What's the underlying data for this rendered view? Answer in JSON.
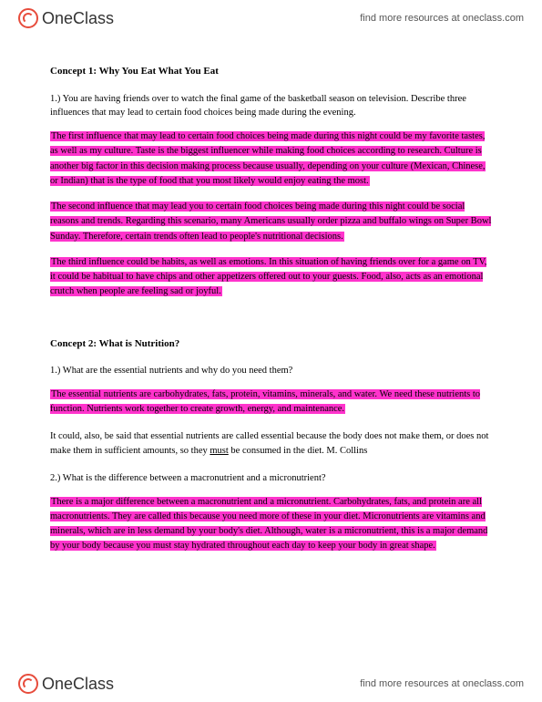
{
  "brand": {
    "name_part1": "One",
    "name_part2": "Class",
    "tagline": "find more resources at oneclass.com"
  },
  "concept1": {
    "title": "Concept 1: Why You Eat What You Eat",
    "q1": "1.)   You are having friends over to watch the final game of the basketball season on television. Describe three influences that may lead to certain food choices being made during the evening.",
    "a1": "The first influence that may lead to certain food choices being made during this night could be my favorite tastes, as well as my culture. Taste is the biggest influencer while making food choices according to research. Culture is another big factor in this decision making process because usually, depending on your culture (Mexican, Chinese, or Indian) that is the type of food that you most likely would enjoy eating the most.",
    "a2": "The second influence that may lead you to certain food choices being made during this night could be social reasons and trends. Regarding this scenario, many Americans usually order pizza and buffalo wings on Super Bowl Sunday. Therefore, certain trends often lead to people's nutritional decisions.",
    "a3": "The third influence could be habits, as well as emotions. In this situation of having friends over for a game on TV, it could be habitual to have chips and other appetizers offered out to your guests. Food, also, acts as an emotional crutch when people are feeling sad or joyful."
  },
  "concept2": {
    "title": "Concept 2: What is Nutrition?",
    "q1": "1.)   What are the essential nutrients and why do you need them?",
    "a1": "The essential nutrients are carbohydrates, fats, protein, vitamins, minerals, and water. We need these nutrients to function. Nutrients work together to create growth, energy, and maintenance.",
    "note_pre": "It could, also, be said that essential nutrients are called essential because the body does not make them, or does not make them in sufficient amounts, so they ",
    "note_underline": "must",
    "note_post": " be consumed in the diet. M. Collins",
    "q2": "2.)   What is the difference between a macronutrient and a micronutrient?",
    "a2": "There is a major difference between a macronutrient and a micronutrient. Carbohydrates, fats, and protein are all macronutrients. They are called this because you need more of these in your diet. Micronutrients are vitamins and minerals, which are in less demand by your body's diet. Although, water is a micronutrient, this is a major demand by your body because you must stay hydrated throughout each day to keep your body in great shape."
  },
  "colors": {
    "highlight": "#ff33cc",
    "logo_accent": "#e74c3c",
    "text": "#000000",
    "link": "#555555"
  }
}
